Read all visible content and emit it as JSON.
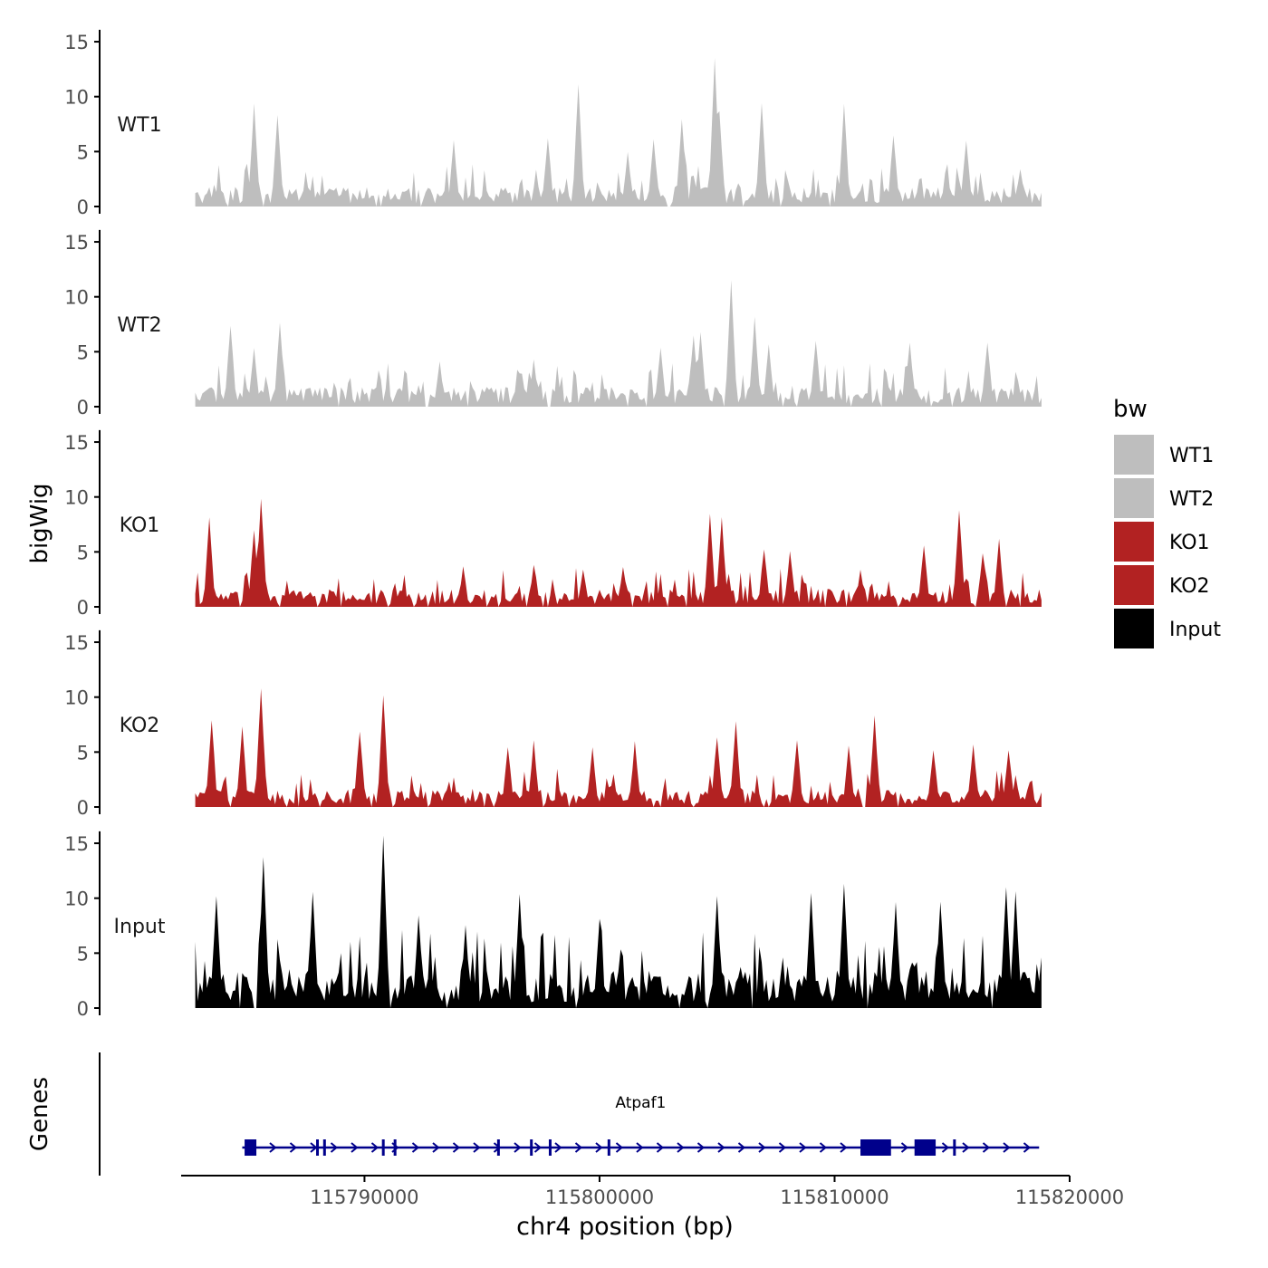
{
  "chart_data": {
    "type": "area",
    "title": "",
    "ylabel": "bigWig",
    "genes_label": "Genes",
    "xlabel": "chr4 position (bp)",
    "xlim": [
      115782200,
      115820000
    ],
    "x_ticks": [
      115790000,
      115800000,
      115810000,
      115820000
    ],
    "x_tick_labels": [
      "115790000",
      "115800000",
      "115810000",
      "115820000"
    ],
    "ylim": [
      0,
      16
    ],
    "y_ticks": [
      0,
      5,
      10,
      15
    ],
    "y_tick_labels": [
      "0",
      "5",
      "10",
      "15"
    ],
    "region": [
      115782800,
      115818800
    ],
    "colors": {
      "WT": "#bebebe",
      "KO": "#b22222",
      "Input": "#000000",
      "gene": "#00008b"
    },
    "legend": {
      "title": "bw",
      "position": "right",
      "entries": [
        {
          "label": "WT1",
          "color": "#bebebe"
        },
        {
          "label": "WT2",
          "color": "#bebebe"
        },
        {
          "label": "KO1",
          "color": "#b22222"
        },
        {
          "label": "KO2",
          "color": "#b22222"
        },
        {
          "label": "Input",
          "color": "#000000"
        }
      ]
    },
    "series": [
      {
        "name": "WT1",
        "color": "#bebebe",
        "peaks": [
          {
            "x": 115785300,
            "y": 9.2
          },
          {
            "x": 115786300,
            "y": 8.5
          },
          {
            "x": 115793800,
            "y": 6.0
          },
          {
            "x": 115797800,
            "y": 6.2
          },
          {
            "x": 115799100,
            "y": 11.3
          },
          {
            "x": 115801200,
            "y": 5.0
          },
          {
            "x": 115802300,
            "y": 6.3
          },
          {
            "x": 115803500,
            "y": 8.0
          },
          {
            "x": 115804900,
            "y": 13.5
          },
          {
            "x": 115805100,
            "y": 8.5
          },
          {
            "x": 115806900,
            "y": 9.5
          },
          {
            "x": 115810400,
            "y": 9.2
          },
          {
            "x": 115812500,
            "y": 6.5
          },
          {
            "x": 115815600,
            "y": 6.0
          },
          {
            "x": 115817900,
            "y": 3.5
          }
        ]
      },
      {
        "name": "WT2",
        "color": "#bebebe",
        "peaks": [
          {
            "x": 115784300,
            "y": 7.5
          },
          {
            "x": 115785300,
            "y": 5.5
          },
          {
            "x": 115786400,
            "y": 7.8
          },
          {
            "x": 115793200,
            "y": 4.0
          },
          {
            "x": 115797200,
            "y": 4.2
          },
          {
            "x": 115802600,
            "y": 5.3
          },
          {
            "x": 115804000,
            "y": 6.5
          },
          {
            "x": 115804300,
            "y": 6.8
          },
          {
            "x": 115805600,
            "y": 11.5
          },
          {
            "x": 115806600,
            "y": 8.0
          },
          {
            "x": 115807200,
            "y": 5.5
          },
          {
            "x": 115809200,
            "y": 6.0
          },
          {
            "x": 115813200,
            "y": 5.8
          },
          {
            "x": 115816500,
            "y": 6.0
          }
        ]
      },
      {
        "name": "KO1",
        "color": "#b22222",
        "peaks": [
          {
            "x": 115783400,
            "y": 8.0
          },
          {
            "x": 115785300,
            "y": 7.0
          },
          {
            "x": 115785600,
            "y": 10.0
          },
          {
            "x": 115794200,
            "y": 3.6
          },
          {
            "x": 115797200,
            "y": 3.8
          },
          {
            "x": 115799300,
            "y": 3.5
          },
          {
            "x": 115801000,
            "y": 3.6
          },
          {
            "x": 115804700,
            "y": 8.3
          },
          {
            "x": 115805200,
            "y": 8.0
          },
          {
            "x": 115807000,
            "y": 5.3
          },
          {
            "x": 115808100,
            "y": 5.0
          },
          {
            "x": 115811100,
            "y": 3.2
          },
          {
            "x": 115813800,
            "y": 5.5
          },
          {
            "x": 115815300,
            "y": 8.8
          },
          {
            "x": 115816300,
            "y": 5.0
          },
          {
            "x": 115817000,
            "y": 6.0
          }
        ]
      },
      {
        "name": "KO2",
        "color": "#b22222",
        "peaks": [
          {
            "x": 115783500,
            "y": 7.8
          },
          {
            "x": 115784800,
            "y": 7.2
          },
          {
            "x": 115785600,
            "y": 10.8
          },
          {
            "x": 115789800,
            "y": 7.0
          },
          {
            "x": 115790800,
            "y": 10.3
          },
          {
            "x": 115796100,
            "y": 5.5
          },
          {
            "x": 115797200,
            "y": 6.0
          },
          {
            "x": 115799700,
            "y": 5.3
          },
          {
            "x": 115801500,
            "y": 5.8
          },
          {
            "x": 115805000,
            "y": 6.5
          },
          {
            "x": 115805800,
            "y": 7.7
          },
          {
            "x": 115808400,
            "y": 6.0
          },
          {
            "x": 115810600,
            "y": 5.5
          },
          {
            "x": 115811700,
            "y": 8.2
          },
          {
            "x": 115814200,
            "y": 5.3
          },
          {
            "x": 115815900,
            "y": 5.5
          },
          {
            "x": 115817400,
            "y": 5.3
          }
        ]
      },
      {
        "name": "Input",
        "color": "#000000",
        "peaks": [
          {
            "x": 115783700,
            "y": 10.2
          },
          {
            "x": 115785700,
            "y": 13.8
          },
          {
            "x": 115787800,
            "y": 10.5
          },
          {
            "x": 115790800,
            "y": 15.5
          },
          {
            "x": 115792300,
            "y": 8.3
          },
          {
            "x": 115794300,
            "y": 7.5
          },
          {
            "x": 115796600,
            "y": 10.3
          },
          {
            "x": 115800000,
            "y": 8.0
          },
          {
            "x": 115805000,
            "y": 10.2
          },
          {
            "x": 115809000,
            "y": 10.5
          },
          {
            "x": 115810400,
            "y": 11.3
          },
          {
            "x": 115812600,
            "y": 9.5
          },
          {
            "x": 115814500,
            "y": 9.8
          },
          {
            "x": 115817300,
            "y": 11.0
          },
          {
            "x": 115817700,
            "y": 10.5
          }
        ]
      }
    ],
    "gene": {
      "name": "Atpaf1",
      "strand": "+",
      "start": 115784800,
      "end": 115818700,
      "small_exons": [
        115788000,
        115788300,
        115790800,
        115791300,
        115795700,
        115797100,
        115797900,
        115800400,
        115813600,
        115815100
      ],
      "large_exons": [
        [
          115784900,
          115785400
        ],
        [
          115811100,
          115812400
        ],
        [
          115813400,
          115814300
        ]
      ]
    }
  }
}
